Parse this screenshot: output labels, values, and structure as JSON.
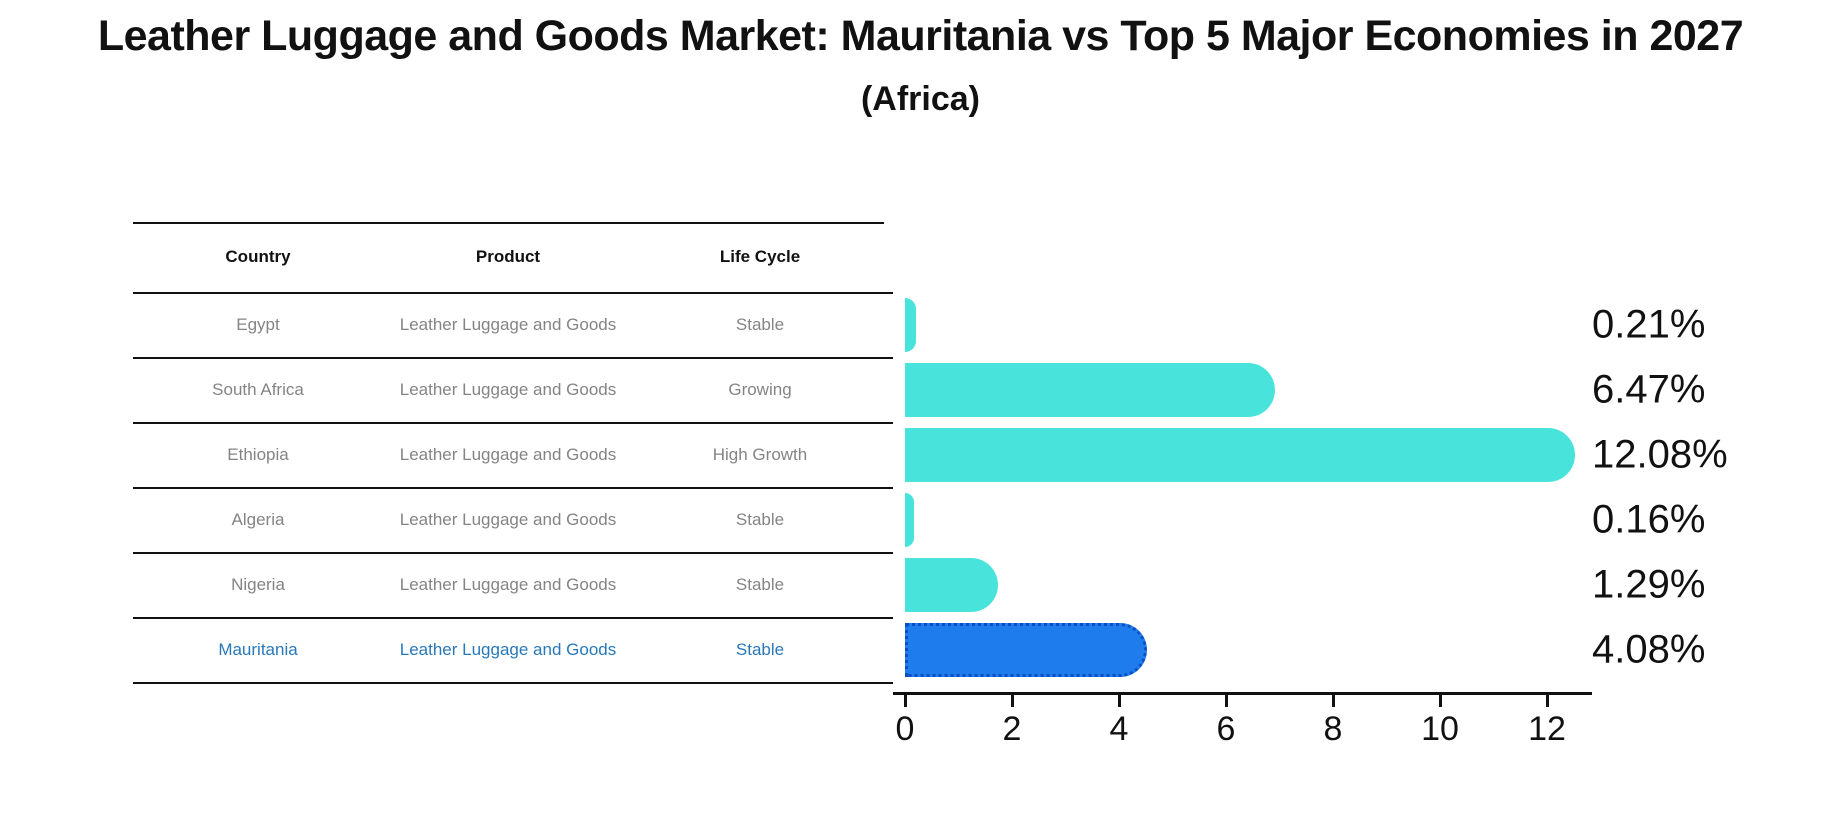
{
  "header": {
    "title": "Leather Luggage and Goods Market: Mauritania vs Top 5 Major Economies in 2027",
    "subtitle": "(Africa)"
  },
  "table": {
    "columns": [
      "Country",
      "Product",
      "Life Cycle"
    ]
  },
  "chart_data": {
    "type": "bar",
    "orientation": "horizontal",
    "title": "Leather Luggage and Goods Market: Mauritania vs Top 5 Major Economies in 2027",
    "subtitle": "(Africa)",
    "categories": [
      "Egypt",
      "South Africa",
      "Ethiopia",
      "Algeria",
      "Nigeria",
      "Mauritania"
    ],
    "values": [
      0.21,
      6.47,
      12.08,
      0.16,
      1.29,
      4.08
    ],
    "value_labels": [
      "0.21%",
      "6.47%",
      "12.08%",
      "0.16%",
      "1.29%",
      "4.08%"
    ],
    "xlabel": "",
    "ylabel": "",
    "xlim": [
      0,
      12.8
    ],
    "xticks": [
      0,
      2,
      4,
      6,
      8,
      10,
      12
    ],
    "grid": false,
    "legend": "none",
    "highlight_index": 5,
    "rows": [
      {
        "country": "Egypt",
        "product": "Leather Luggage and Goods",
        "life_cycle": "Stable",
        "value": 0.21,
        "label": "0.21%",
        "highlight": false
      },
      {
        "country": "South Africa",
        "product": "Leather Luggage and Goods",
        "life_cycle": "Growing",
        "value": 6.47,
        "label": "6.47%",
        "highlight": false
      },
      {
        "country": "Ethiopia",
        "product": "Leather Luggage and Goods",
        "life_cycle": "High Growth",
        "value": 12.08,
        "label": "12.08%",
        "highlight": false
      },
      {
        "country": "Algeria",
        "product": "Leather Luggage and Goods",
        "life_cycle": "Stable",
        "value": 0.16,
        "label": "0.16%",
        "highlight": false
      },
      {
        "country": "Nigeria",
        "product": "Leather Luggage and Goods",
        "life_cycle": "Stable",
        "value": 1.29,
        "label": "1.29%",
        "highlight": false
      },
      {
        "country": "Mauritania",
        "product": "Leather Luggage and Goods",
        "life_cycle": "Stable",
        "value": 4.08,
        "label": "4.08%",
        "highlight": true
      }
    ]
  },
  "colors": {
    "bar": "#48e4dc",
    "highlight_bar": "#1e7cec",
    "highlight_border": "#0b4fc4",
    "highlight_text": "#2878b9",
    "row_text": "#848484",
    "line": "#111111"
  }
}
